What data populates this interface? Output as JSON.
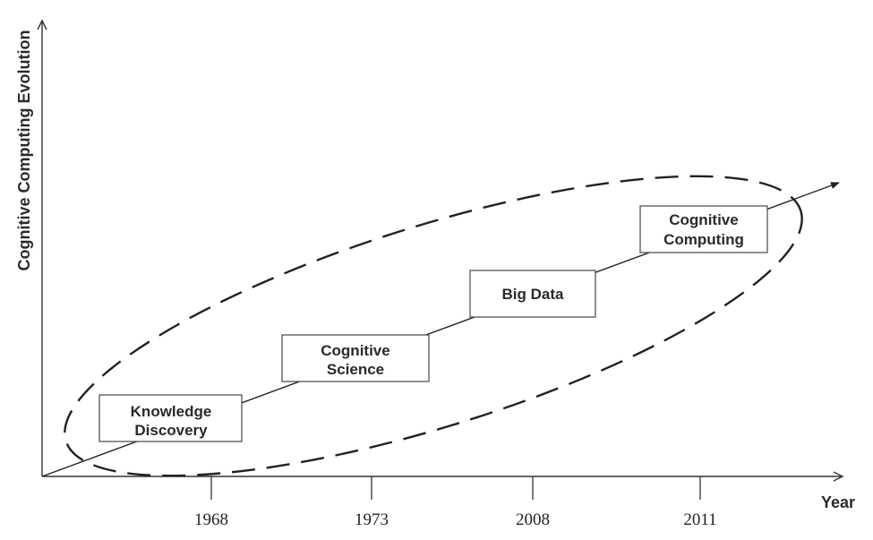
{
  "axes": {
    "y_label": "Cognitive Computing Evolution",
    "x_label": "Year",
    "ticks": [
      "1968",
      "1973",
      "2008",
      "2011"
    ]
  },
  "stages": [
    {
      "lines": [
        "Knowledge",
        "Discovery"
      ]
    },
    {
      "lines": [
        "Cognitive",
        "Science"
      ]
    },
    {
      "lines": [
        "Big Data"
      ]
    },
    {
      "lines": [
        "Cognitive",
        "Computing"
      ]
    }
  ]
}
